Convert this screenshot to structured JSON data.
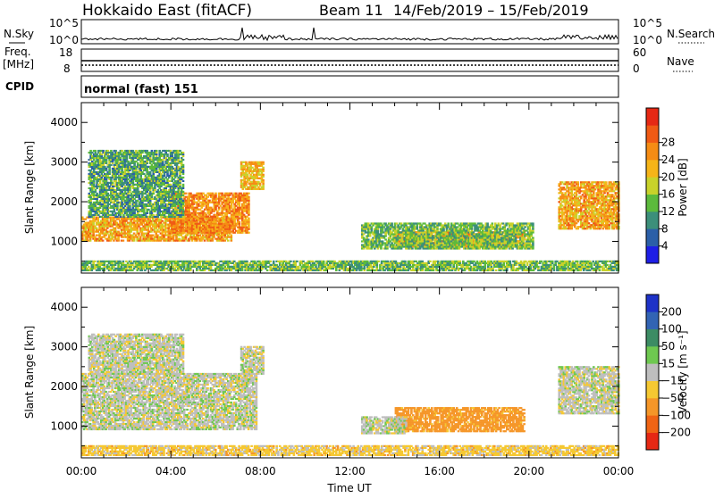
{
  "header": {
    "title": "Hokkaido East (fitACF)",
    "beam_label": "Beam 11",
    "date_range": "14/Feb/2019 – 15/Feb/2019"
  },
  "nsky_panel": {
    "label": "N.Sky",
    "right_label": "N.Search",
    "left_ticks": [
      "10^5",
      "10^0"
    ],
    "right_ticks": [
      "10^5",
      "10^0"
    ]
  },
  "freq_panel": {
    "label_line1": "Freq.",
    "label_line2": "[MHz]",
    "right_label": "Nave",
    "left_ticks": [
      "18",
      "8"
    ],
    "right_ticks": [
      "60",
      "0"
    ]
  },
  "cpid": {
    "label": "CPID",
    "value": "normal (fast) 151"
  },
  "power_colorbar": {
    "label": "Power [dB]",
    "ticks": [
      "4",
      "8",
      "12",
      "16",
      "20",
      "24",
      "28"
    ],
    "colors": [
      "#1e1ee6",
      "#2b5fa8",
      "#3c8f7a",
      "#5cba3c",
      "#c8d22a",
      "#f5b418",
      "#f58c14",
      "#f05a14",
      "#e62814"
    ]
  },
  "velocity_colorbar": {
    "label": "Velocity [m s⁻¹]",
    "ticks": [
      "200",
      "100",
      "50",
      "15",
      "−15",
      "−50",
      "−100",
      "−200"
    ],
    "colors": [
      "#1e32c8",
      "#3264b4",
      "#3c8c64",
      "#6ec850",
      "#bebebe",
      "#f5c832",
      "#f59628",
      "#f06414",
      "#e62814"
    ]
  },
  "chart_data": [
    {
      "type": "heatmap",
      "title": "",
      "xlabel": "",
      "ylabel": "Slant Range [km]",
      "xlim": [
        0,
        24
      ],
      "ylim": [
        200,
        4500
      ],
      "xticks": [
        "00:00",
        "04:00",
        "08:00",
        "12:00",
        "16:00",
        "20:00",
        "00:00"
      ],
      "yticks": [
        1000,
        2000,
        3000,
        4000
      ],
      "quantity": "Power [dB]",
      "regions": [
        {
          "t0": 0.0,
          "t1": 6.7,
          "r0": 1000,
          "r1": 1600,
          "level": 24
        },
        {
          "t0": 4.0,
          "t1": 7.5,
          "r0": 1200,
          "r1": 2200,
          "level": 26
        },
        {
          "t0": 7.1,
          "t1": 8.1,
          "r0": 2300,
          "r1": 3000,
          "level": 22
        },
        {
          "t0": 0.3,
          "t1": 4.5,
          "r0": 1600,
          "r1": 3300,
          "level": 12
        },
        {
          "t0": 14.0,
          "t1": 19.8,
          "r0": 850,
          "r1": 1250,
          "level": 24
        },
        {
          "t0": 12.5,
          "t1": 20.2,
          "r0": 800,
          "r1": 1450,
          "level": 14
        },
        {
          "t0": 21.3,
          "t1": 24.0,
          "r0": 1300,
          "r1": 2500,
          "level": 24
        },
        {
          "t0": 0.0,
          "t1": 24.0,
          "r0": 250,
          "r1": 500,
          "level": 14
        }
      ]
    },
    {
      "type": "heatmap",
      "title": "",
      "xlabel": "Time UT",
      "ylabel": "Slant Range [km]",
      "xlim": [
        0,
        24
      ],
      "ylim": [
        200,
        4500
      ],
      "xticks": [
        "00:00",
        "04:00",
        "08:00",
        "12:00",
        "16:00",
        "20:00",
        "00:00"
      ],
      "yticks": [
        1000,
        2000,
        3000,
        4000
      ],
      "quantity": "Velocity [m s⁻¹]",
      "regions": [
        {
          "t0": 0.0,
          "t1": 7.8,
          "r0": 900,
          "r1": 2300,
          "level": 0
        },
        {
          "t0": 7.1,
          "t1": 8.1,
          "r0": 2300,
          "r1": 3000,
          "level": 0
        },
        {
          "t0": 0.3,
          "t1": 4.5,
          "r0": 2300,
          "r1": 3300,
          "level": 0
        },
        {
          "t0": 14.0,
          "t1": 19.8,
          "r0": 850,
          "r1": 1450,
          "level": -70
        },
        {
          "t0": 12.5,
          "t1": 14.5,
          "r0": 800,
          "r1": 1250,
          "level": 0
        },
        {
          "t0": 21.3,
          "t1": 24.0,
          "r0": 1300,
          "r1": 2500,
          "level": 0
        },
        {
          "t0": 0.0,
          "t1": 24.0,
          "r0": 250,
          "r1": 500,
          "level": -30
        }
      ]
    }
  ]
}
